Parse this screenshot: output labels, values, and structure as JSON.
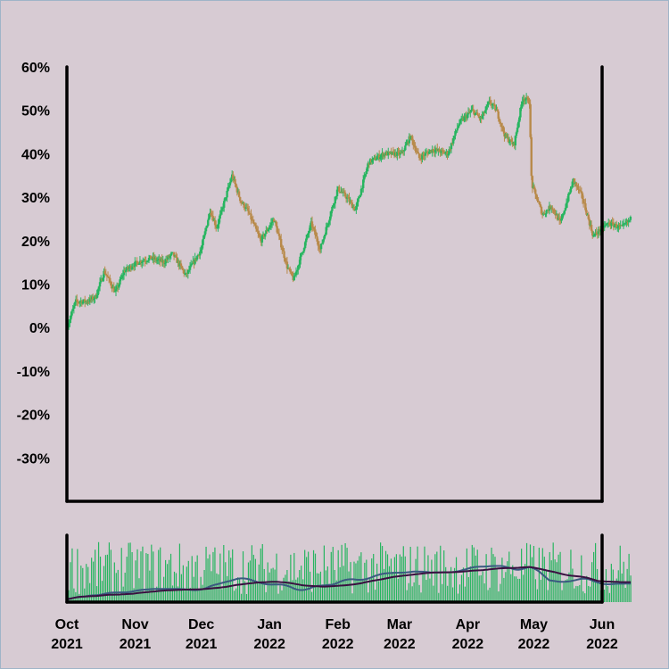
{
  "colors": {
    "background": "#d7cbd3",
    "up": "#27b560",
    "down": "#b88a4a",
    "axis": "#000000",
    "ma_fast": "#3a5a80",
    "ma_slow": "#3a1040"
  },
  "chart_data": {
    "type": "candlestick",
    "title": "",
    "xlabel": "",
    "ylabel": "",
    "ylim": [
      -0.4,
      0.6
    ],
    "yticks": [
      {
        "value": 0.6,
        "label": "60%"
      },
      {
        "value": 0.5,
        "label": "50%"
      },
      {
        "value": 0.4,
        "label": "40%"
      },
      {
        "value": 0.3,
        "label": "30%"
      },
      {
        "value": 0.2,
        "label": "20%"
      },
      {
        "value": 0.1,
        "label": "10%"
      },
      {
        "value": 0.0,
        "label": "0%"
      },
      {
        "value": -0.1,
        "label": "-10%"
      },
      {
        "value": -0.2,
        "label": "-20%"
      },
      {
        "value": -0.3,
        "label": "-30%"
      }
    ],
    "xrange": [
      "2021-10-01",
      "2022-06-01"
    ],
    "xticks": [
      {
        "date": "2021-10-01",
        "month": "Oct",
        "year": "2021"
      },
      {
        "date": "2021-11-01",
        "month": "Nov",
        "year": "2021"
      },
      {
        "date": "2021-12-01",
        "month": "Dec",
        "year": "2021"
      },
      {
        "date": "2022-01-01",
        "month": "Jan",
        "year": "2022"
      },
      {
        "date": "2022-02-01",
        "month": "Feb",
        "year": "2022"
      },
      {
        "date": "2022-03-01",
        "month": "Mar",
        "year": "2022"
      },
      {
        "date": "2022-04-01",
        "month": "Apr",
        "year": "2022"
      },
      {
        "date": "2022-05-01",
        "month": "May",
        "year": "2022"
      },
      {
        "date": "2022-06-01",
        "month": "Jun",
        "year": "2022"
      }
    ],
    "close_path": [
      [
        "2021-10-01",
        0.0
      ],
      [
        "2021-10-05",
        0.06
      ],
      [
        "2021-10-10",
        0.06
      ],
      [
        "2021-10-14",
        0.07
      ],
      [
        "2021-10-18",
        0.13
      ],
      [
        "2021-10-23",
        0.08
      ],
      [
        "2021-10-27",
        0.13
      ],
      [
        "2021-11-02",
        0.15
      ],
      [
        "2021-11-08",
        0.16
      ],
      [
        "2021-11-14",
        0.15
      ],
      [
        "2021-11-18",
        0.17
      ],
      [
        "2021-11-24",
        0.12
      ],
      [
        "2021-12-01",
        0.18
      ],
      [
        "2021-12-05",
        0.27
      ],
      [
        "2021-12-08",
        0.23
      ],
      [
        "2021-12-15",
        0.35
      ],
      [
        "2021-12-19",
        0.29
      ],
      [
        "2021-12-22",
        0.27
      ],
      [
        "2021-12-28",
        0.2
      ],
      [
        "2022-01-03",
        0.25
      ],
      [
        "2022-01-09",
        0.14
      ],
      [
        "2022-01-12",
        0.11
      ],
      [
        "2022-01-15",
        0.16
      ],
      [
        "2022-01-20",
        0.24
      ],
      [
        "2022-01-24",
        0.18
      ],
      [
        "2022-02-01",
        0.32
      ],
      [
        "2022-02-05",
        0.3
      ],
      [
        "2022-02-09",
        0.27
      ],
      [
        "2022-02-15",
        0.38
      ],
      [
        "2022-02-22",
        0.4
      ],
      [
        "2022-03-02",
        0.4
      ],
      [
        "2022-03-06",
        0.44
      ],
      [
        "2022-03-10",
        0.39
      ],
      [
        "2022-03-16",
        0.41
      ],
      [
        "2022-03-23",
        0.4
      ],
      [
        "2022-03-28",
        0.47
      ],
      [
        "2022-04-03",
        0.5
      ],
      [
        "2022-04-07",
        0.48
      ],
      [
        "2022-04-11",
        0.52
      ],
      [
        "2022-04-14",
        0.5
      ],
      [
        "2022-04-18",
        0.44
      ],
      [
        "2022-04-22",
        0.42
      ],
      [
        "2022-04-26",
        0.53
      ],
      [
        "2022-04-29",
        0.52
      ],
      [
        "2022-04-30",
        0.33
      ],
      [
        "2022-05-05",
        0.26
      ],
      [
        "2022-05-09",
        0.28
      ],
      [
        "2022-05-13",
        0.24
      ],
      [
        "2022-05-19",
        0.34
      ],
      [
        "2022-05-23",
        0.3
      ],
      [
        "2022-05-28",
        0.21
      ],
      [
        "2022-06-01",
        0.23
      ],
      [
        "2022-06-04",
        0.24
      ],
      [
        "2022-06-10",
        0.23
      ],
      [
        "2022-06-14",
        0.25
      ]
    ]
  }
}
